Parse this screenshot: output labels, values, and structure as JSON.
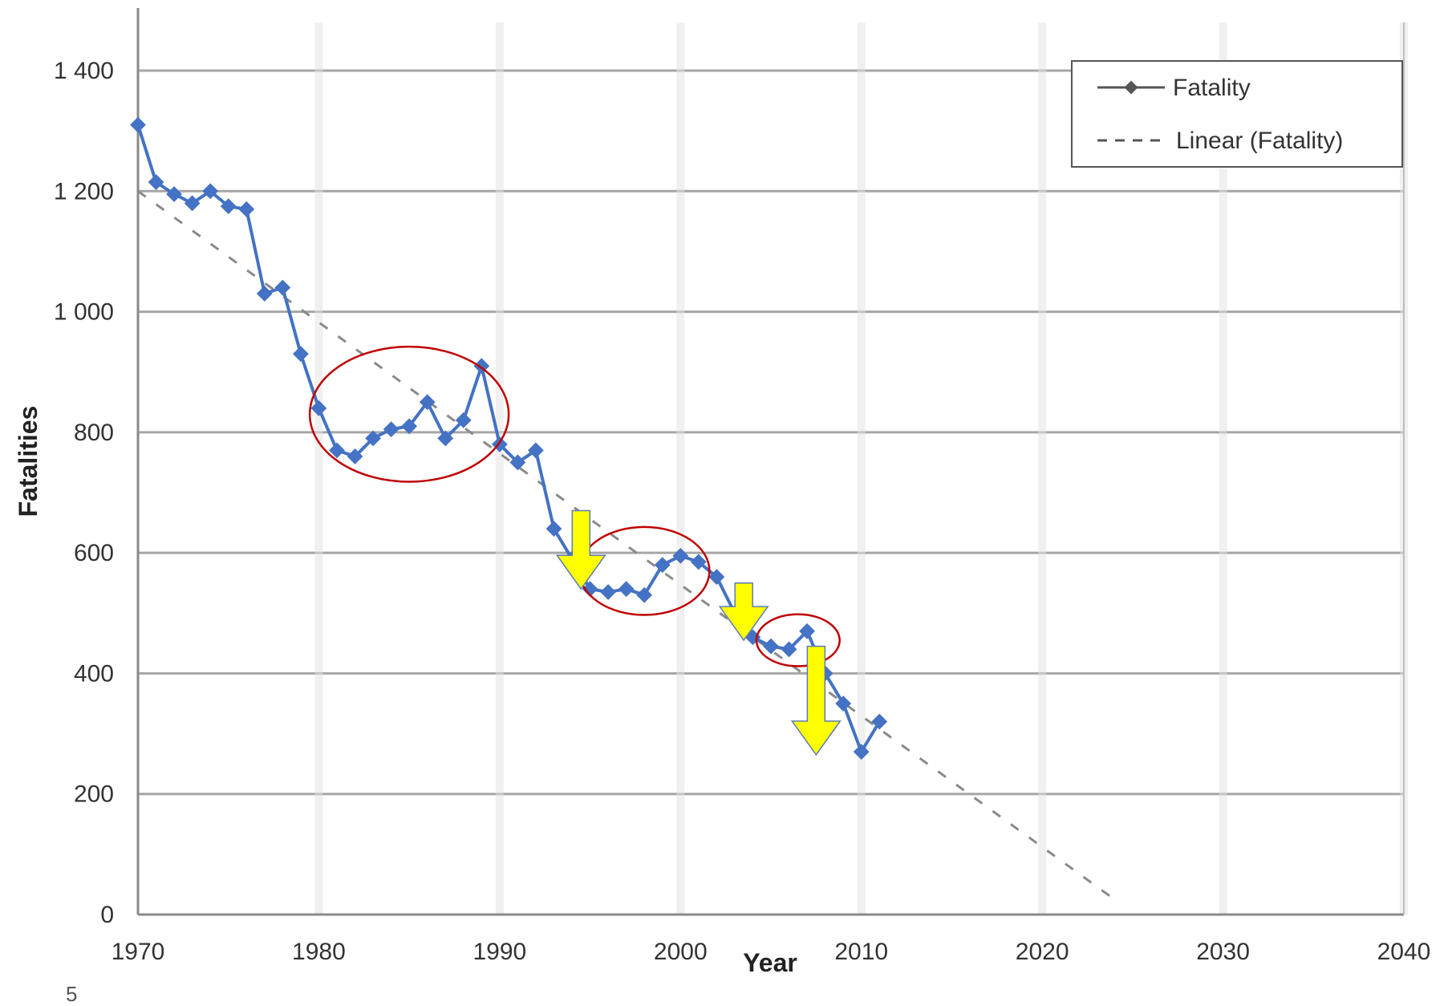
{
  "chart_data": {
    "type": "line",
    "title": "",
    "xlabel": "Year",
    "ylabel": "Fatalities",
    "xlim": [
      1970,
      2040
    ],
    "ylim": [
      0,
      1400
    ],
    "x_ticks": [
      1970,
      1980,
      1990,
      2000,
      2010,
      2020,
      2030,
      2040
    ],
    "y_ticks": [
      0,
      200,
      400,
      600,
      800,
      1000,
      1200,
      1400
    ],
    "y_tick_labels": [
      "0",
      "200",
      "400",
      "600",
      "800",
      "1 000",
      "1 200",
      "1 400"
    ],
    "x_tick_labels": [
      "1970",
      "1980",
      "1990",
      "2000",
      "2010",
      "2020",
      "2030",
      "2040"
    ],
    "grid": "horizontal",
    "legend_position": "top-right",
    "series": [
      {
        "name": "Fatality",
        "color": "#4472c4",
        "style": "solid",
        "marker": "diamond",
        "x": [
          1970,
          1971,
          1972,
          1973,
          1974,
          1975,
          1976,
          1977,
          1978,
          1979,
          1980,
          1981,
          1982,
          1983,
          1984,
          1985,
          1986,
          1987,
          1988,
          1989,
          1990,
          1991,
          1992,
          1993,
          1994,
          1995,
          1996,
          1997,
          1998,
          1999,
          2000,
          2001,
          2002,
          2003,
          2004,
          2005,
          2006,
          2007,
          2008,
          2009,
          2010,
          2011
        ],
        "y": [
          1310,
          1215,
          1195,
          1180,
          1200,
          1175,
          1170,
          1030,
          1040,
          930,
          840,
          770,
          760,
          790,
          805,
          810,
          850,
          790,
          820,
          910,
          780,
          750,
          770,
          640,
          590,
          540,
          535,
          540,
          530,
          580,
          595,
          585,
          560,
          500,
          460,
          445,
          440,
          470,
          400,
          350,
          270,
          320
        ]
      },
      {
        "name": "Linear (Fatality)",
        "color": "#8a8a8a",
        "style": "dashed",
        "x": [
          1970,
          2024
        ],
        "y": [
          1200,
          25
        ]
      }
    ],
    "annotations": {
      "ellipses": [
        {
          "cx": 1985,
          "cy": 830,
          "rx": 5.5,
          "ry": 112
        },
        {
          "cx": 1998,
          "cy": 570,
          "rx": 3.6,
          "ry": 73
        },
        {
          "cx": 2006.5,
          "cy": 455,
          "rx": 2.3,
          "ry": 43
        }
      ],
      "arrows": [
        {
          "x": 1994.5,
          "y_from": 670,
          "y_to": 540
        },
        {
          "x": 2003.5,
          "y_from": 550,
          "y_to": 455
        },
        {
          "x": 2007.5,
          "y_from": 445,
          "y_to": 265
        }
      ],
      "ellipse_color": "#c00000",
      "arrow_color": "#ffff00"
    },
    "corner_mark": "5"
  }
}
